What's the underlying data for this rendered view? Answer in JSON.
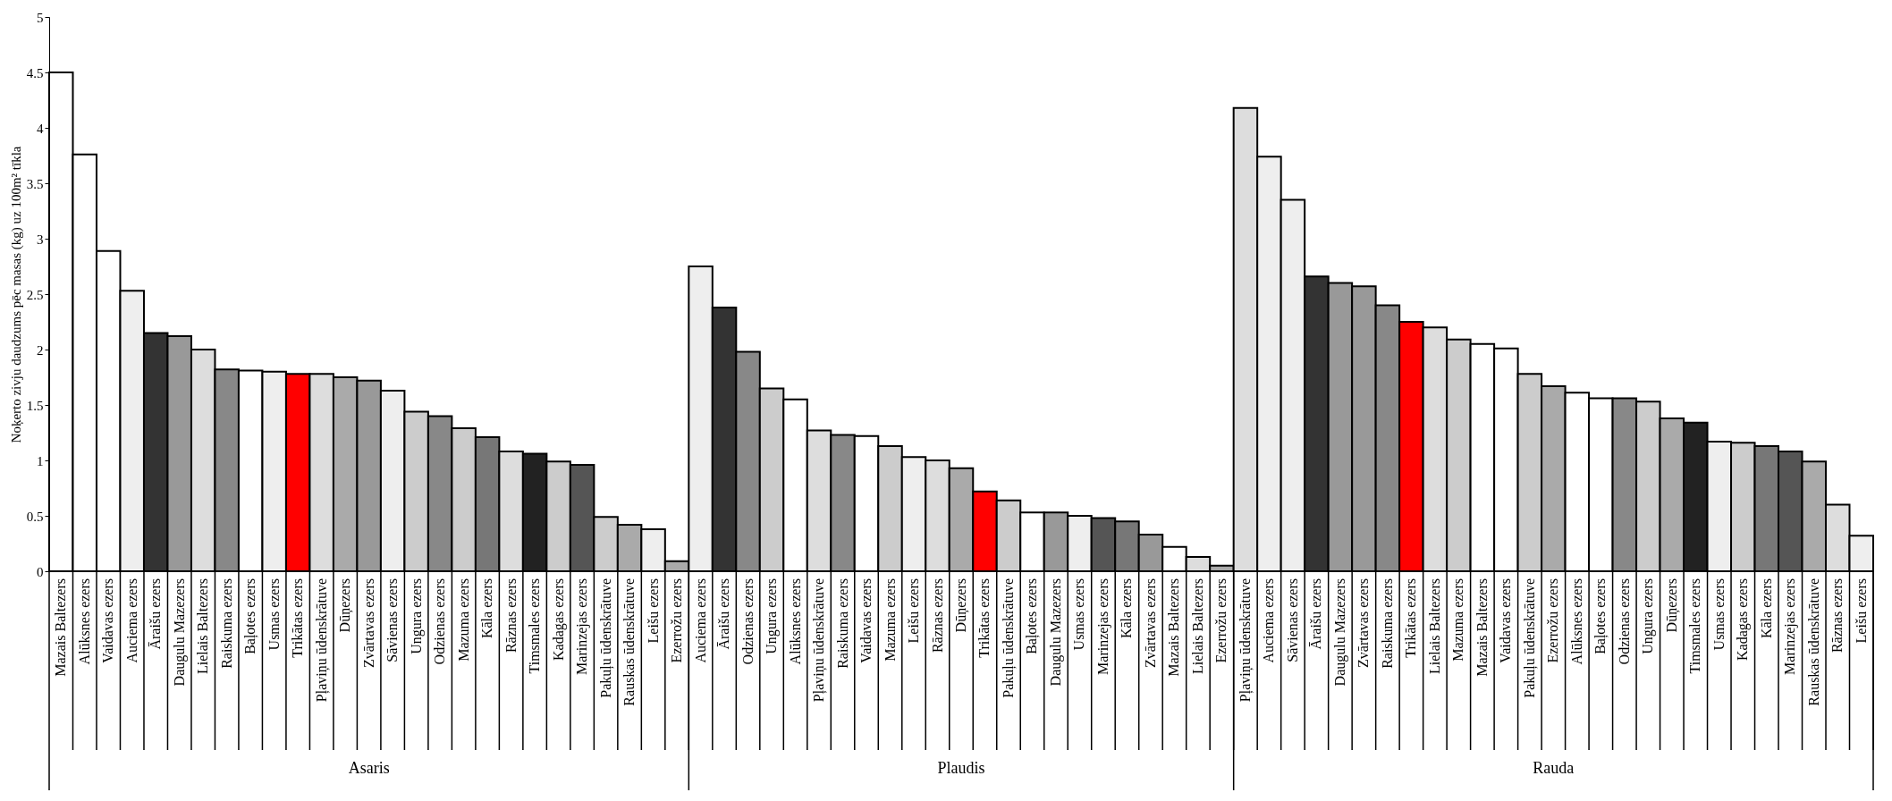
{
  "chart_data": {
    "type": "bar",
    "ylabel": "Noķerto zivju daudzums pēc masas (kg) uz 100m² tīkla",
    "ylim": [
      0,
      5
    ],
    "yticks": [
      0,
      0.5,
      1,
      1.5,
      2,
      2.5,
      3,
      3.5,
      4,
      4.5,
      5
    ],
    "grid": false,
    "categories": [
      "Mazais Baltezers",
      "Alūksnes ezers",
      "Vaidavas ezers",
      "Auciema ezers",
      "Āraišu ezers",
      "Daugulu Mazezers",
      "Lielais Baltezers",
      "Raiskuma ezers",
      "Baļotes ezers",
      "Usmas ezers",
      "Trikātas ezers",
      "Pļaviņu ūdenskrātuve",
      "Dūņezers",
      "Zvārtavas ezers",
      "Sāvienas ezers",
      "Ungura ezers",
      "Odzienas ezers",
      "Mazuma ezers",
      "Kāla ezers",
      "Rāznas ezers",
      "Timsmales ezers",
      "Kadagas ezers",
      "Marinzejas ezers",
      "Pakuļu ūdenskrātuve",
      "Rauskas ūdenskrātuve",
      "Leišu ezers",
      "Ezerrožu ezers",
      "Auciema ezers",
      "Āraišu ezers",
      "Odzienas ezers",
      "Ungura ezers",
      "Alūksnes ezers",
      "Pļaviņu ūdenskrātuve",
      "Raiskuma ezers",
      "Vaidavas ezers",
      "Mazuma ezers",
      "Leišu ezers",
      "Rāznas ezers",
      "Dūņezers",
      "Trikātas ezers",
      "Pakuļu ūdenskrātuve",
      "Baļotes ezers",
      "Daugulu Mazezers",
      "Usmas ezers",
      "Marinzejas ezers",
      "Kāla ezers",
      "Zvārtavas ezers",
      "Mazais Baltezers",
      "Lielais Baltezers",
      "Ezerrožu ezers",
      "Pļaviņu ūdenskrātuve",
      "Auciema ezers",
      "Sāvienas ezers",
      "Āraišu ezers",
      "Daugulu Mazezers",
      "Zvārtavas ezers",
      "Raiskuma ezers",
      "Trikātas ezers",
      "Lielais Baltezers",
      "Mazuma ezers",
      "Mazais Baltezers",
      "Vaidavas ezers",
      "Pakuļu ūdenskrātuve",
      "Ezerrožu ezers",
      "Alūksnes ezers",
      "Baļotes ezers",
      "Odzienas ezers",
      "Ungura ezers",
      "Dūņezers",
      "Timsmales ezers",
      "Usmas ezers",
      "Kadagas ezers",
      "Kāla ezers",
      "Marinzejas ezers",
      "Rauskas ūdenskrātuve",
      "Rāznas ezers",
      "Leišu ezers"
    ],
    "series": [
      {
        "name": "Asaris",
        "values": [
          4.5,
          3.76,
          2.89,
          2.53,
          2.15,
          2.12,
          2.0,
          1.82,
          1.81,
          1.8,
          1.78,
          1.78,
          1.75,
          1.72,
          1.63,
          1.44,
          1.4,
          1.29,
          1.21,
          1.08,
          1.06,
          0.99,
          0.96,
          0.49,
          0.42,
          0.38,
          0.09,
          null,
          null,
          null,
          null,
          null,
          null,
          null,
          null,
          null,
          null,
          null,
          null,
          null,
          null,
          null,
          null,
          null,
          null,
          null,
          null,
          null,
          null,
          null,
          null,
          null,
          null,
          null,
          null,
          null,
          null,
          null,
          null,
          null,
          null,
          null,
          null,
          null,
          null,
          null,
          null,
          null,
          null,
          null,
          null,
          null,
          null,
          null,
          null,
          null,
          null
        ],
        "colors": [
          "#ffffff",
          "#ffffff",
          "#ffffff",
          "#eeeeee",
          "#333333",
          "#999999",
          "#dddddd",
          "#888888",
          "#ffffff",
          "#eeeeee",
          "#ff0000",
          "#dddddd",
          "#aaaaaa",
          "#999999",
          "#eeeeee",
          "#cccccc",
          "#888888",
          "#cccccc",
          "#777777",
          "#dddddd",
          "#222222",
          "#cccccc",
          "#555555",
          "#cccccc",
          "#aaaaaa",
          "#eeeeee",
          "#aaaaaa",
          null,
          null,
          null,
          null,
          null,
          null,
          null,
          null,
          null,
          null,
          null,
          null,
          null,
          null,
          null,
          null,
          null,
          null,
          null,
          null,
          null,
          null,
          null,
          null,
          null,
          null,
          null,
          null,
          null,
          null,
          null,
          null,
          null,
          null,
          null,
          null,
          null,
          null,
          null,
          null,
          null,
          null,
          null,
          null,
          null,
          null,
          null,
          null,
          null,
          null
        ]
      },
      {
        "name": "Plaudis",
        "values": [
          null,
          null,
          null,
          null,
          null,
          null,
          null,
          null,
          null,
          null,
          null,
          null,
          null,
          null,
          null,
          null,
          null,
          null,
          null,
          null,
          null,
          null,
          null,
          null,
          null,
          null,
          null,
          2.75,
          2.38,
          1.98,
          1.65,
          1.55,
          1.27,
          1.23,
          1.22,
          1.13,
          1.03,
          1.0,
          0.93,
          0.72,
          0.64,
          0.53,
          0.53,
          0.5,
          0.48,
          0.45,
          0.33,
          0.22,
          0.13,
          0.05,
          null,
          null,
          null,
          null,
          null,
          null,
          null,
          null,
          null,
          null,
          null,
          null,
          null,
          null,
          null,
          null,
          null,
          null,
          null,
          null,
          null,
          null,
          null,
          null,
          null,
          null,
          null
        ],
        "colors": [
          null,
          null,
          null,
          null,
          null,
          null,
          null,
          null,
          null,
          null,
          null,
          null,
          null,
          null,
          null,
          null,
          null,
          null,
          null,
          null,
          null,
          null,
          null,
          null,
          null,
          null,
          null,
          "#eeeeee",
          "#333333",
          "#888888",
          "#cccccc",
          "#ffffff",
          "#dddddd",
          "#888888",
          "#ffffff",
          "#cccccc",
          "#eeeeee",
          "#dddddd",
          "#aaaaaa",
          "#ff0000",
          "#cccccc",
          "#ffffff",
          "#999999",
          "#eeeeee",
          "#555555",
          "#777777",
          "#999999",
          "#ffffff",
          "#dddddd",
          "#aaaaaa",
          null,
          null,
          null,
          null,
          null,
          null,
          null,
          null,
          null,
          null,
          null,
          null,
          null,
          null,
          null,
          null,
          null,
          null,
          null,
          null,
          null,
          null,
          null,
          null,
          null,
          null,
          null
        ]
      },
      {
        "name": "Rauda",
        "values": [
          null,
          null,
          null,
          null,
          null,
          null,
          null,
          null,
          null,
          null,
          null,
          null,
          null,
          null,
          null,
          null,
          null,
          null,
          null,
          null,
          null,
          null,
          null,
          null,
          null,
          null,
          null,
          null,
          null,
          null,
          null,
          null,
          null,
          null,
          null,
          null,
          null,
          null,
          null,
          null,
          null,
          null,
          null,
          null,
          null,
          null,
          null,
          null,
          null,
          null,
          4.18,
          3.74,
          3.35,
          2.66,
          2.6,
          2.57,
          2.4,
          2.25,
          2.2,
          2.09,
          2.05,
          2.01,
          1.78,
          1.67,
          1.61,
          1.56,
          1.56,
          1.53,
          1.38,
          1.34,
          1.17,
          1.16,
          1.13,
          1.08,
          0.99,
          0.6,
          0.32
        ],
        "colors": [
          null,
          null,
          null,
          null,
          null,
          null,
          null,
          null,
          null,
          null,
          null,
          null,
          null,
          null,
          null,
          null,
          null,
          null,
          null,
          null,
          null,
          null,
          null,
          null,
          null,
          null,
          null,
          null,
          null,
          null,
          null,
          null,
          null,
          null,
          null,
          null,
          null,
          null,
          null,
          null,
          null,
          null,
          null,
          null,
          null,
          null,
          null,
          null,
          null,
          null,
          "#dddddd",
          "#eeeeee",
          "#eeeeee",
          "#333333",
          "#999999",
          "#999999",
          "#888888",
          "#ff0000",
          "#dddddd",
          "#cccccc",
          "#ffffff",
          "#ffffff",
          "#cccccc",
          "#aaaaaa",
          "#ffffff",
          "#ffffff",
          "#888888",
          "#cccccc",
          "#aaaaaa",
          "#222222",
          "#eeeeee",
          "#cccccc",
          "#777777",
          "#555555",
          "#aaaaaa",
          "#dddddd",
          "#eeeeee"
        ]
      }
    ]
  }
}
